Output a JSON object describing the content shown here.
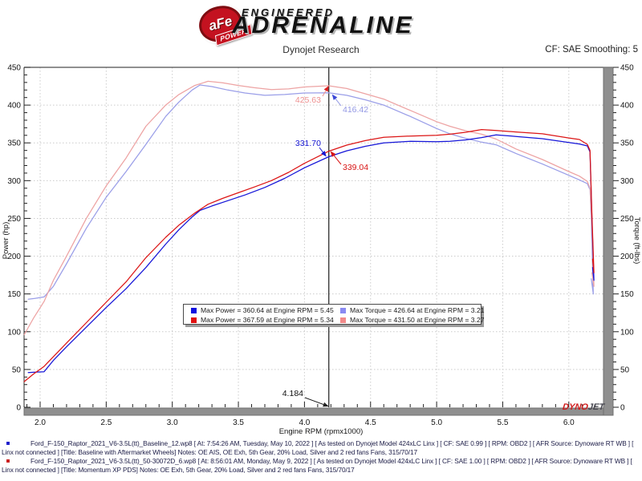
{
  "header": {
    "brand": {
      "badge_text": "aFe",
      "badge_sub": "POWER",
      "line1": "ENGINEERED",
      "line2": "ADRENALINE"
    },
    "title": "Dynojet Research",
    "smoothing": "CF: SAE Smoothing: 5"
  },
  "chart_data": {
    "type": "line",
    "title": "Dynojet Research",
    "xlabel": "Engine RPM (rpmx1000)",
    "ylabel_left": "Power (hp)",
    "ylabel_right": "Torque (ft-lbs)",
    "xlim": [
      1.879,
      6.262
    ],
    "ylim": [
      0,
      450
    ],
    "x_major_ticks": [
      2.0,
      2.5,
      3.0,
      3.5,
      4.0,
      4.5,
      5.0,
      5.5,
      6.0
    ],
    "x_minor_step": 0.1,
    "y_major_ticks": [
      0,
      50,
      100,
      150,
      200,
      250,
      300,
      350,
      400,
      450
    ],
    "y_minor_step": 10,
    "grid": "dotted",
    "legend_position": "center-inside",
    "cursor": {
      "rpm": 4.184,
      "label": "4.184"
    },
    "series": [
      {
        "name": "Baseline Torque",
        "axis": "right",
        "color": "#9a9ee8",
        "points": [
          [
            1.91,
            143
          ],
          [
            1.96,
            144
          ],
          [
            2.03,
            146
          ],
          [
            2.1,
            160
          ],
          [
            2.2,
            190
          ],
          [
            2.35,
            237
          ],
          [
            2.5,
            278
          ],
          [
            2.65,
            312
          ],
          [
            2.8,
            348
          ],
          [
            2.95,
            385
          ],
          [
            3.05,
            404
          ],
          [
            3.15,
            420
          ],
          [
            3.21,
            426.6
          ],
          [
            3.3,
            424.5
          ],
          [
            3.42,
            420
          ],
          [
            3.55,
            416
          ],
          [
            3.7,
            413
          ],
          [
            3.85,
            414
          ],
          [
            4.0,
            416
          ],
          [
            4.184,
            416.4
          ],
          [
            4.32,
            413
          ],
          [
            4.46,
            407
          ],
          [
            4.6,
            400
          ],
          [
            4.8,
            385
          ],
          [
            5.0,
            369
          ],
          [
            5.1,
            362
          ],
          [
            5.22,
            356
          ],
          [
            5.34,
            351
          ],
          [
            5.45,
            347.5
          ],
          [
            5.6,
            336
          ],
          [
            5.8,
            322
          ],
          [
            6.0,
            307
          ],
          [
            6.08,
            301
          ],
          [
            6.14,
            296
          ],
          [
            6.16,
            288
          ],
          [
            6.17,
            250
          ],
          [
            6.185,
            150
          ],
          [
            6.17,
            170
          ]
        ]
      },
      {
        "name": "Momentum Torque",
        "axis": "right",
        "color": "#eda3a3",
        "points": [
          [
            1.88,
            96
          ],
          [
            1.95,
            118
          ],
          [
            2.03,
            140
          ],
          [
            2.1,
            168
          ],
          [
            2.2,
            200
          ],
          [
            2.35,
            250
          ],
          [
            2.5,
            293
          ],
          [
            2.65,
            330
          ],
          [
            2.8,
            372
          ],
          [
            2.95,
            400
          ],
          [
            3.05,
            414
          ],
          [
            3.17,
            426
          ],
          [
            3.27,
            431.5
          ],
          [
            3.38,
            429.5
          ],
          [
            3.5,
            426
          ],
          [
            3.62,
            423
          ],
          [
            3.75,
            420.5
          ],
          [
            3.88,
            421.5
          ],
          [
            4.0,
            424
          ],
          [
            4.184,
            425.6
          ],
          [
            4.32,
            422
          ],
          [
            4.46,
            415
          ],
          [
            4.6,
            408
          ],
          [
            4.8,
            393
          ],
          [
            5.0,
            378
          ],
          [
            5.1,
            372
          ],
          [
            5.22,
            366
          ],
          [
            5.34,
            361.5
          ],
          [
            5.45,
            355
          ],
          [
            5.6,
            342
          ],
          [
            5.8,
            328
          ],
          [
            6.0,
            312
          ],
          [
            6.08,
            306
          ],
          [
            6.14,
            299
          ],
          [
            6.16,
            290
          ],
          [
            6.175,
            235
          ],
          [
            6.19,
            160
          ],
          [
            6.175,
            178
          ]
        ]
      },
      {
        "name": "Baseline Power",
        "axis": "left",
        "color": "#1515d8",
        "points": [
          [
            1.91,
            46
          ],
          [
            1.96,
            46.5
          ],
          [
            2.03,
            47
          ],
          [
            2.1,
            62
          ],
          [
            2.2,
            80
          ],
          [
            2.35,
            106
          ],
          [
            2.5,
            132
          ],
          [
            2.65,
            157
          ],
          [
            2.8,
            185
          ],
          [
            2.95,
            216
          ],
          [
            3.05,
            235
          ],
          [
            3.15,
            252
          ],
          [
            3.21,
            260.7
          ],
          [
            3.3,
            266.5
          ],
          [
            3.42,
            273.5
          ],
          [
            3.55,
            281
          ],
          [
            3.7,
            291
          ],
          [
            3.85,
            303
          ],
          [
            4.0,
            317
          ],
          [
            4.184,
            331.7
          ],
          [
            4.32,
            339.5
          ],
          [
            4.46,
            345.5
          ],
          [
            4.6,
            350
          ],
          [
            4.8,
            352
          ],
          [
            5.0,
            351.5
          ],
          [
            5.1,
            352
          ],
          [
            5.22,
            354
          ],
          [
            5.34,
            357
          ],
          [
            5.45,
            360.6
          ],
          [
            5.6,
            358.5
          ],
          [
            5.8,
            355.5
          ],
          [
            6.0,
            350.5
          ],
          [
            6.08,
            348.5
          ],
          [
            6.14,
            346
          ],
          [
            6.16,
            338
          ],
          [
            6.175,
            250
          ],
          [
            6.19,
            168
          ],
          [
            6.18,
            185
          ]
        ]
      },
      {
        "name": "Momentum Power",
        "axis": "left",
        "color": "#dc1515",
        "points": [
          [
            1.88,
            34
          ],
          [
            1.95,
            44
          ],
          [
            2.03,
            54
          ],
          [
            2.1,
            67
          ],
          [
            2.2,
            85
          ],
          [
            2.35,
            112
          ],
          [
            2.5,
            139
          ],
          [
            2.65,
            166
          ],
          [
            2.8,
            198
          ],
          [
            2.95,
            225
          ],
          [
            3.05,
            241
          ],
          [
            3.17,
            257
          ],
          [
            3.27,
            268.7
          ],
          [
            3.38,
            276.5
          ],
          [
            3.5,
            284
          ],
          [
            3.62,
            291.5
          ],
          [
            3.75,
            300
          ],
          [
            3.88,
            311
          ],
          [
            4.0,
            323
          ],
          [
            4.184,
            339
          ],
          [
            4.32,
            347
          ],
          [
            4.46,
            353
          ],
          [
            4.6,
            357.5
          ],
          [
            4.8,
            359
          ],
          [
            5.0,
            360
          ],
          [
            5.1,
            361.5
          ],
          [
            5.22,
            364
          ],
          [
            5.34,
            367.6
          ],
          [
            5.45,
            366.5
          ],
          [
            5.6,
            364.5
          ],
          [
            5.8,
            362
          ],
          [
            6.0,
            356.5
          ],
          [
            6.08,
            354.5
          ],
          [
            6.14,
            348
          ],
          [
            6.16,
            340
          ],
          [
            6.175,
            255
          ],
          [
            6.19,
            178
          ],
          [
            6.18,
            196
          ]
        ]
      }
    ],
    "callouts": [
      {
        "label": "425.63",
        "value": 425.63,
        "rpm": 4.184,
        "series": "Momentum Torque",
        "text_color": "#ee9090",
        "arrow_color": "#dd2020"
      },
      {
        "label": "416.42",
        "value": 416.42,
        "rpm": 4.184,
        "series": "Baseline Torque",
        "text_color": "#9398e4",
        "arrow_color": "#3a46d6"
      },
      {
        "label": "331.70",
        "value": 331.7,
        "rpm": 4.184,
        "series": "Baseline Power",
        "text_color": "#1515d2",
        "arrow_color": "#1515d2"
      },
      {
        "label": "339.04",
        "value": 339.04,
        "rpm": 4.184,
        "series": "Momentum Power",
        "text_color": "#d81414",
        "arrow_color": "#d81414"
      },
      {
        "label": "4.184",
        "value": 0,
        "rpm": 4.184,
        "series": "x-axis",
        "text_color": "#111111",
        "arrow_color": "#222222"
      }
    ]
  },
  "legend": {
    "items": [
      {
        "color": "#1010e0",
        "label": "Max Power = 360.64 at Engine RPM = 5.45"
      },
      {
        "color": "#8a8af2",
        "label": "Max Torque = 426.64 at Engine RPM = 3.21"
      },
      {
        "color": "#e01010",
        "label": "Max Power = 367.59 at Engine RPM = 5.34"
      },
      {
        "color": "#f28a8a",
        "label": "Max Torque = 431.50 at Engine RPM = 3.27"
      }
    ]
  },
  "watermark": {
    "part1": "DYNO",
    "part2": "JET"
  },
  "footer": {
    "runs": [
      {
        "bullet_color": "#2222cc",
        "text": "Ford_F-150_Raptor_2021_V6-3.5L(tt)_Baseline_12.wp8 [ At: 7:54:26 AM, Tuesday, May 10, 2022 ] [ As tested on Dynojet Model 424xLC Linx ] [ CF: SAE 0.99 ] [ RPM: OBD2 ] [ AFR Source: Dynoware RT WB ] [ Linx not connected ] [Title: Baseline with Aftermarket Wheels]  Notes: OE AIS, OE Exh, 5th Gear, 20% Load, Silver and 2 red fans Fans, 315/70/17"
      },
      {
        "bullet_color": "#cc2222",
        "text": "Ford_F-150_Raptor_2021_V6-3.5L(tt)_50-30072D_6.wp8 [ At: 8:56:01 AM, Monday, May 9, 2022 ] [ As tested on Dynojet Model 424xLC Linx ] [ CF: SAE 1.00 ] [ RPM: OBD2 ] [ AFR Source: Dynoware RT WB ] [ Linx not connected ] [Title: Momentum XP PDS]  Notes: OE Exh, 5th Gear, 20% Load, Silver and 2 red fans Fans, 315/70/17"
      }
    ]
  }
}
